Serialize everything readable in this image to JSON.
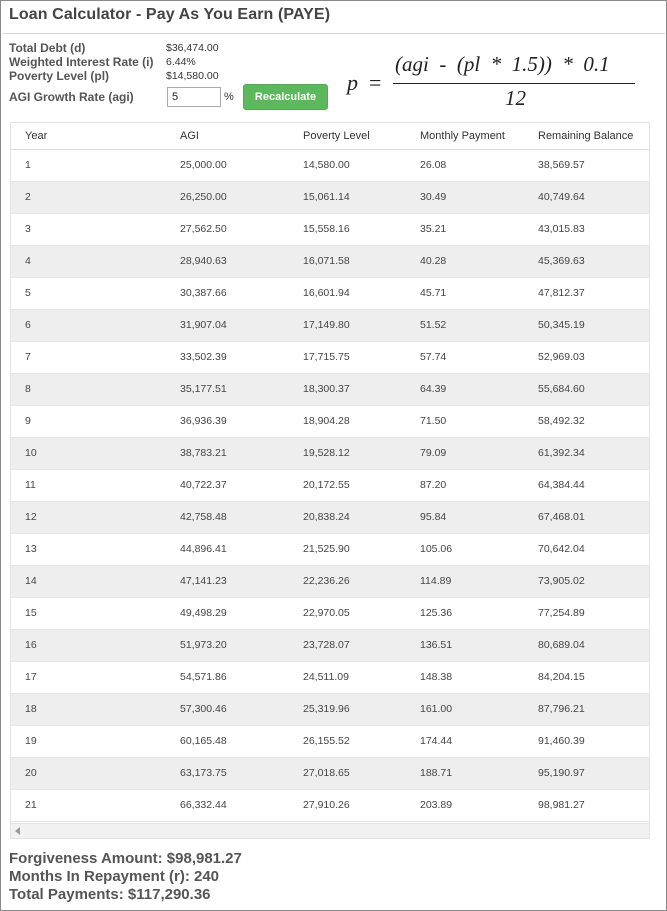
{
  "title": "Loan Calculator - Pay As You Earn (PAYE)",
  "params": {
    "total_debt_label": "Total Debt (d)",
    "total_debt_value": "$36,474.00",
    "interest_label": "Weighted Interest Rate (i)",
    "interest_value": "6.44%",
    "poverty_label": "Poverty Level (pl)",
    "poverty_value": "$14,580.00",
    "growth_label": "AGI Growth Rate (agi)",
    "growth_value": "5",
    "growth_unit": "%"
  },
  "recalculate_label": "Recalculate",
  "formula": {
    "lhs": "p",
    "equals": "=",
    "numerator": "(agi  -  (pl  *  1.5))  *  0.1",
    "denominator": "12"
  },
  "table": {
    "columns": [
      "Year",
      "AGI",
      "Poverty Level",
      "Monthly Payment",
      "Remaining Balance"
    ],
    "rows": [
      [
        "1",
        "25,000.00",
        "14,580.00",
        "26.08",
        "38,569.57"
      ],
      [
        "2",
        "26,250.00",
        "15,061.14",
        "30.49",
        "40,749.64"
      ],
      [
        "3",
        "27,562.50",
        "15,558.16",
        "35.21",
        "43,015.83"
      ],
      [
        "4",
        "28,940.63",
        "16,071.58",
        "40.28",
        "45,369.63"
      ],
      [
        "5",
        "30,387.66",
        "16,601.94",
        "45.71",
        "47,812.37"
      ],
      [
        "6",
        "31,907.04",
        "17,149.80",
        "51.52",
        "50,345.19"
      ],
      [
        "7",
        "33,502.39",
        "17,715.75",
        "57.74",
        "52,969.03"
      ],
      [
        "8",
        "35,177.51",
        "18,300.37",
        "64.39",
        "55,684.60"
      ],
      [
        "9",
        "36,936.39",
        "18,904.28",
        "71.50",
        "58,492.32"
      ],
      [
        "10",
        "38,783.21",
        "19,528.12",
        "79.09",
        "61,392.34"
      ],
      [
        "11",
        "40,722.37",
        "20,172.55",
        "87.20",
        "64,384.44"
      ],
      [
        "12",
        "42,758.48",
        "20,838.24",
        "95.84",
        "67,468.01"
      ],
      [
        "13",
        "44,896.41",
        "21,525.90",
        "105.06",
        "70,642.04"
      ],
      [
        "14",
        "47,141.23",
        "22,236.26",
        "114.89",
        "73,905.02"
      ],
      [
        "15",
        "49,498.29",
        "22,970.05",
        "125.36",
        "77,254.89"
      ],
      [
        "16",
        "51,973.20",
        "23,728.07",
        "136.51",
        "80,689.04"
      ],
      [
        "17",
        "54,571.86",
        "24,511.09",
        "148.38",
        "84,204.15"
      ],
      [
        "18",
        "57,300.46",
        "25,319.96",
        "161.00",
        "87,796.21"
      ],
      [
        "19",
        "60,165.48",
        "26,155.52",
        "174.44",
        "91,460.39"
      ],
      [
        "20",
        "63,173.75",
        "27,018.65",
        "188.71",
        "95,190.97"
      ],
      [
        "21",
        "66,332.44",
        "27,910.26",
        "203.89",
        "98,981.27"
      ]
    ]
  },
  "summary": {
    "forgiveness": "Forgiveness Amount: $98,981.27",
    "months": "Months In Repayment (r): 240",
    "total_payments": "Total Payments: $117,290.36"
  },
  "colors": {
    "button": "#5cb85c",
    "stripe": "#eeeeee"
  },
  "icons": {
    "scroll_left": "scroll-left-arrow-icon"
  }
}
